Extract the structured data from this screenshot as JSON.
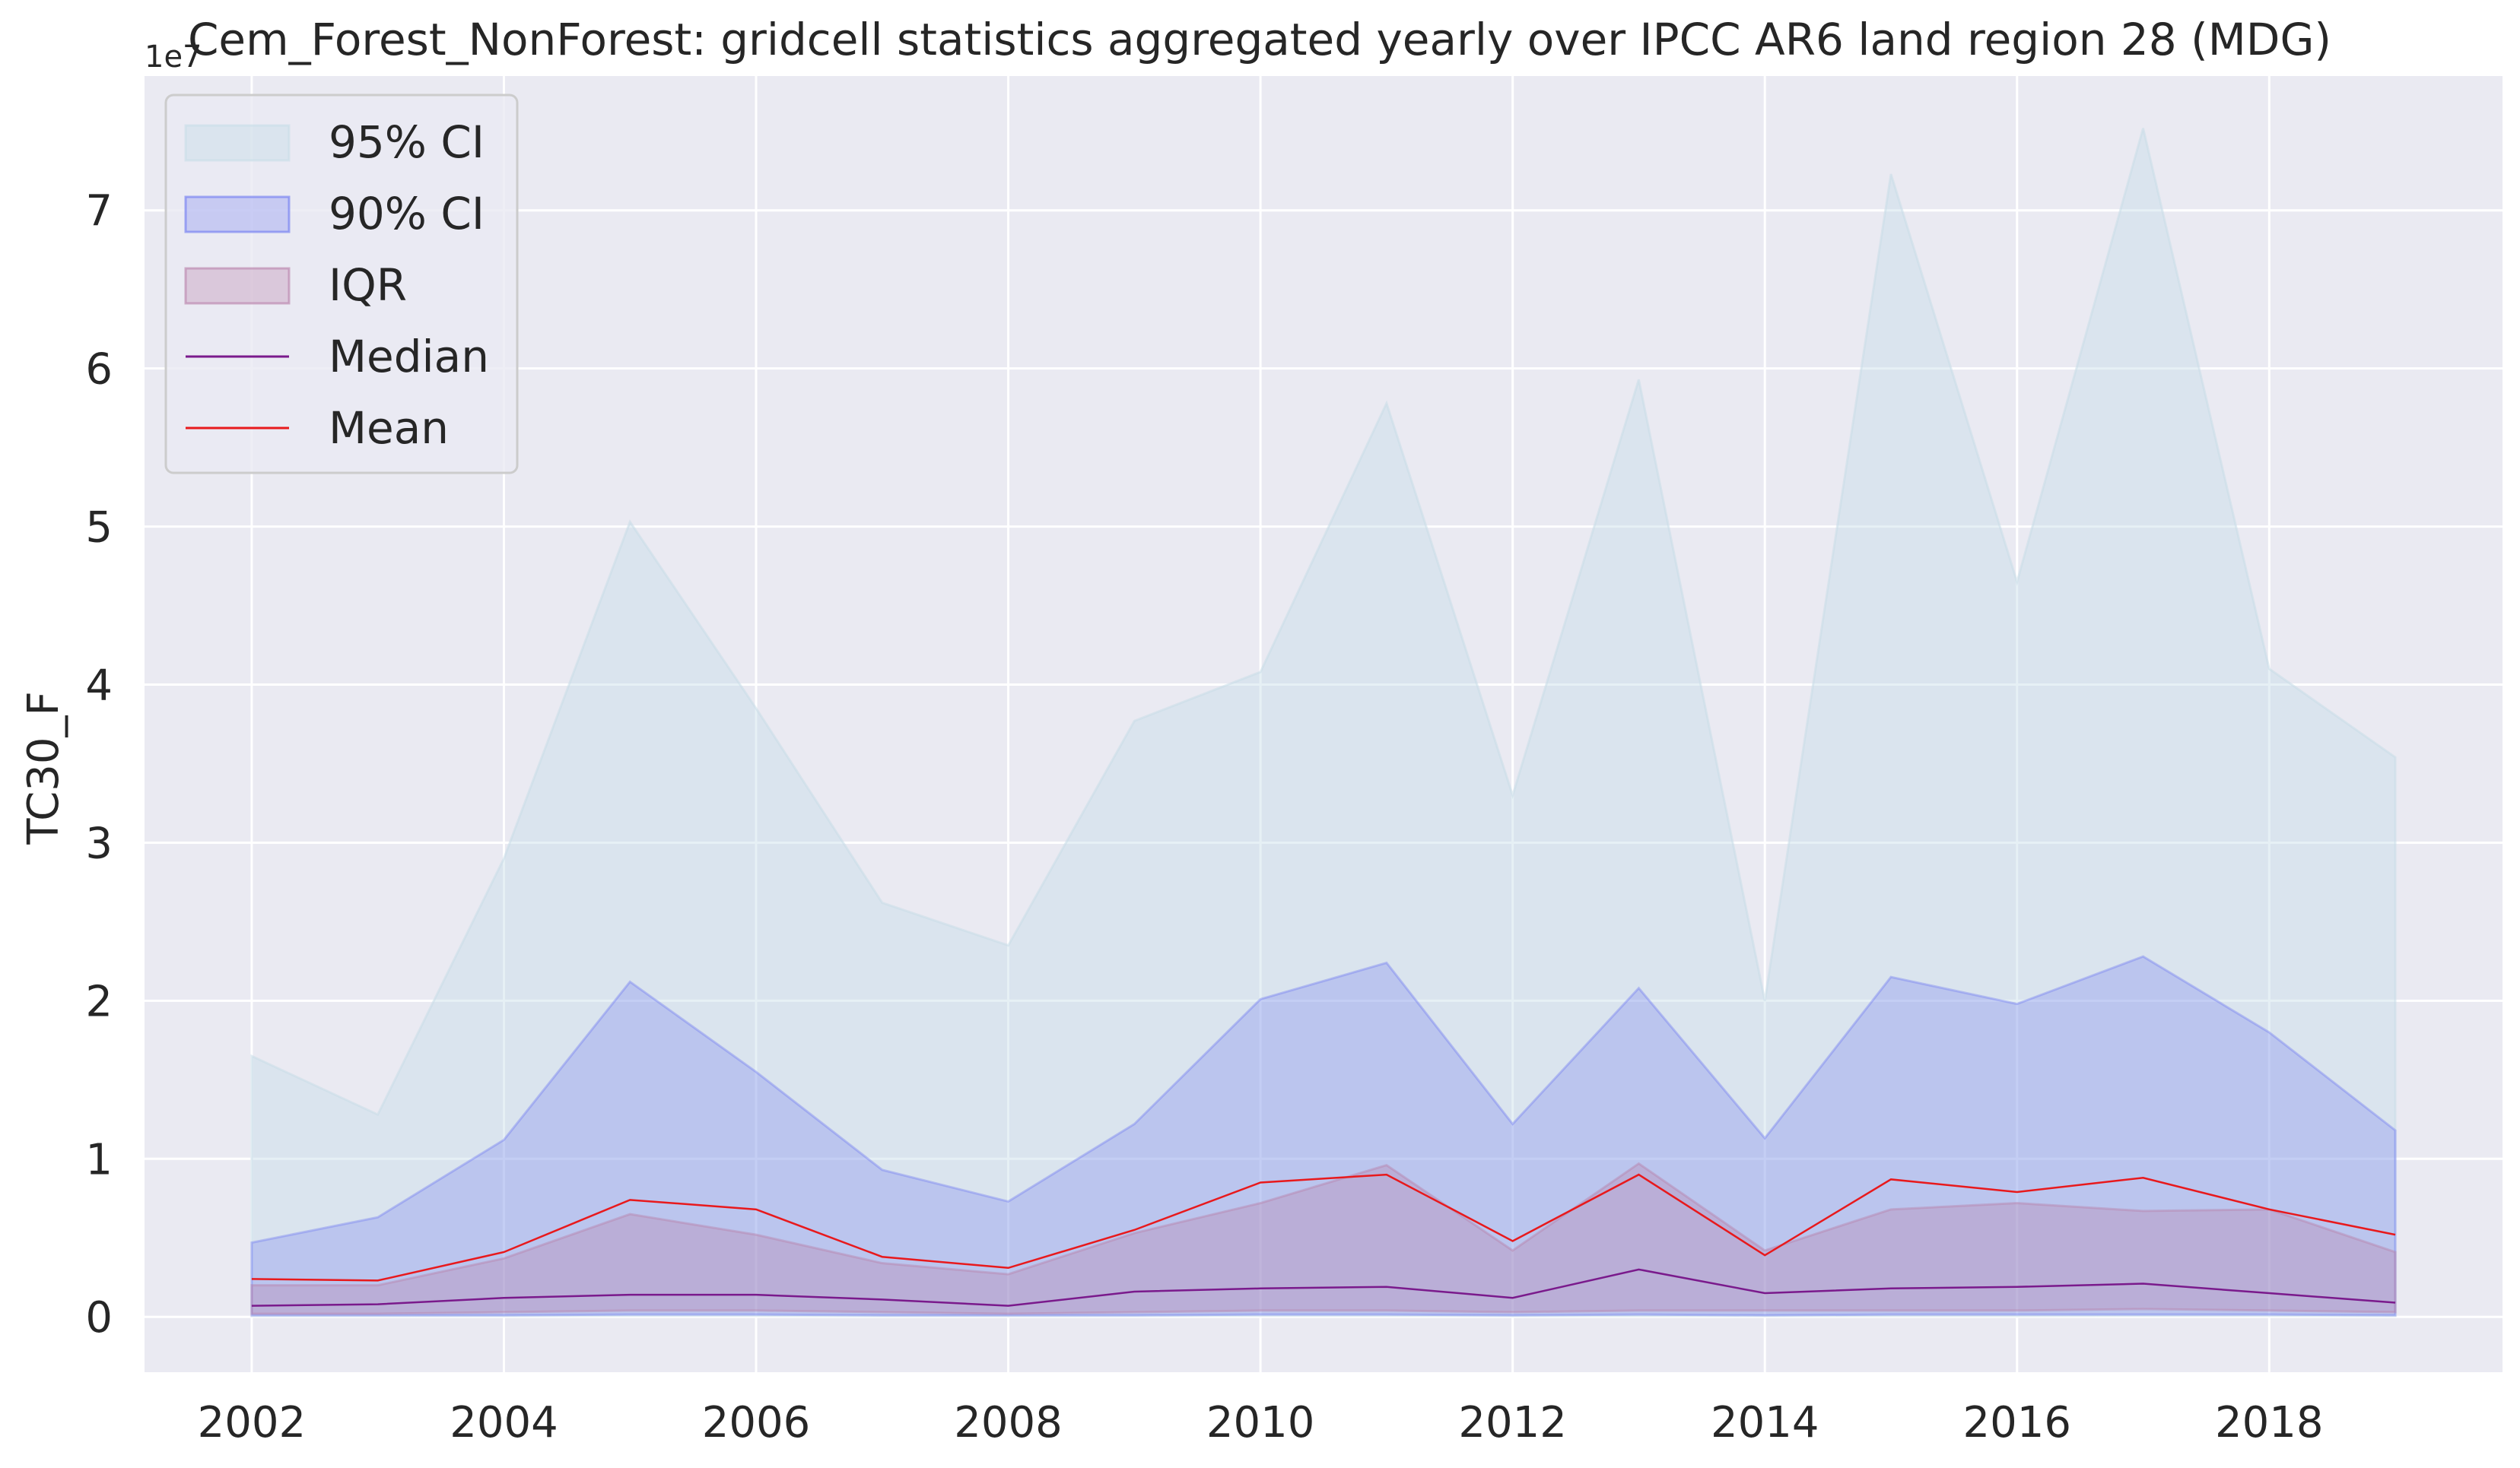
{
  "chart_data": {
    "type": "area",
    "title": "Cem_Forest_NonForest: gridcell statistics aggregated yearly over IPCC AR6 land region 28 (MDG)",
    "xlabel": "",
    "ylabel": "TC30_F",
    "y_offset_label": "1e7",
    "y_scale": 10000000,
    "xlim": [
      2001.15,
      2019.85
    ],
    "ylim": [
      -3500000,
      78500000
    ],
    "x_ticks": [
      2002,
      2004,
      2006,
      2008,
      2010,
      2012,
      2014,
      2016,
      2018
    ],
    "y_ticks": [
      0,
      10000000,
      20000000,
      30000000,
      40000000,
      50000000,
      60000000,
      70000000
    ],
    "y_tick_labels": [
      "0",
      "1",
      "2",
      "3",
      "4",
      "5",
      "6",
      "7"
    ],
    "grid": true,
    "legend_position": "upper-left",
    "x": [
      2002,
      2003,
      2004,
      2005,
      2006,
      2007,
      2008,
      2009,
      2010,
      2011,
      2012,
      2013,
      2014,
      2015,
      2016,
      2017,
      2018,
      2019
    ],
    "bands": [
      {
        "name": "95% CI",
        "fill": "#c8dde8",
        "stroke": "#c8dde8",
        "opacity": 0.45,
        "lower": [
          50000,
          50000,
          60000,
          70000,
          70000,
          50000,
          50000,
          60000,
          70000,
          70000,
          60000,
          60000,
          60000,
          60000,
          60000,
          70000,
          70000,
          60000
        ],
        "upper": [
          16500000,
          12800000,
          29000000,
          50300000,
          38500000,
          26200000,
          23500000,
          37700000,
          40800000,
          57800000,
          33000000,
          59300000,
          20000000,
          72300000,
          46500000,
          75200000,
          41000000,
          35400000
        ]
      },
      {
        "name": "90% CI",
        "fill": "#6b76f2",
        "stroke": "#6b76f2",
        "opacity": 0.28,
        "lower": [
          100000,
          100000,
          100000,
          150000,
          150000,
          100000,
          100000,
          100000,
          150000,
          150000,
          100000,
          150000,
          100000,
          150000,
          150000,
          150000,
          150000,
          100000
        ],
        "upper": [
          4700000,
          6300000,
          11200000,
          21200000,
          15500000,
          9300000,
          7300000,
          12200000,
          20100000,
          22400000,
          12200000,
          20800000,
          11300000,
          21500000,
          19800000,
          22800000,
          18000000,
          11800000
        ]
      },
      {
        "name": "IQR",
        "fill": "#b87fa8",
        "stroke": "#b87fa8",
        "opacity": 0.32,
        "lower": [
          200000,
          200000,
          300000,
          400000,
          400000,
          300000,
          200000,
          300000,
          400000,
          400000,
          300000,
          400000,
          400000,
          400000,
          400000,
          500000,
          400000,
          300000
        ],
        "upper": [
          2000000,
          2000000,
          3700000,
          6500000,
          5200000,
          3400000,
          2700000,
          5300000,
          7200000,
          9600000,
          4200000,
          9700000,
          4200000,
          6800000,
          7200000,
          6700000,
          6800000,
          4100000
        ]
      }
    ],
    "series": [
      {
        "name": "Median",
        "color": "#7a1a8c",
        "values": [
          700000,
          800000,
          1200000,
          1400000,
          1400000,
          1100000,
          700000,
          1600000,
          1800000,
          1900000,
          1200000,
          3000000,
          1500000,
          1800000,
          1900000,
          2100000,
          1500000,
          900000
        ]
      },
      {
        "name": "Mean",
        "color": "#e8191c",
        "values": [
          2400000,
          2300000,
          4100000,
          7400000,
          6800000,
          3800000,
          3100000,
          5500000,
          8500000,
          9000000,
          4800000,
          9000000,
          3900000,
          8700000,
          7900000,
          8800000,
          6800000,
          5200000
        ]
      }
    ],
    "legend": [
      {
        "name": "95% CI",
        "kind": "patch",
        "color": "#c8dde8"
      },
      {
        "name": "90% CI",
        "kind": "patch",
        "color": "#6b76f2"
      },
      {
        "name": "IQR",
        "kind": "patch",
        "color": "#b87fa8"
      },
      {
        "name": "Median",
        "kind": "line",
        "color": "#7a1a8c"
      },
      {
        "name": "Mean",
        "kind": "line",
        "color": "#e8191c"
      }
    ],
    "colors": {
      "axes_background": "#eaeaf2",
      "grid": "#ffffff",
      "text": "#262626"
    }
  }
}
